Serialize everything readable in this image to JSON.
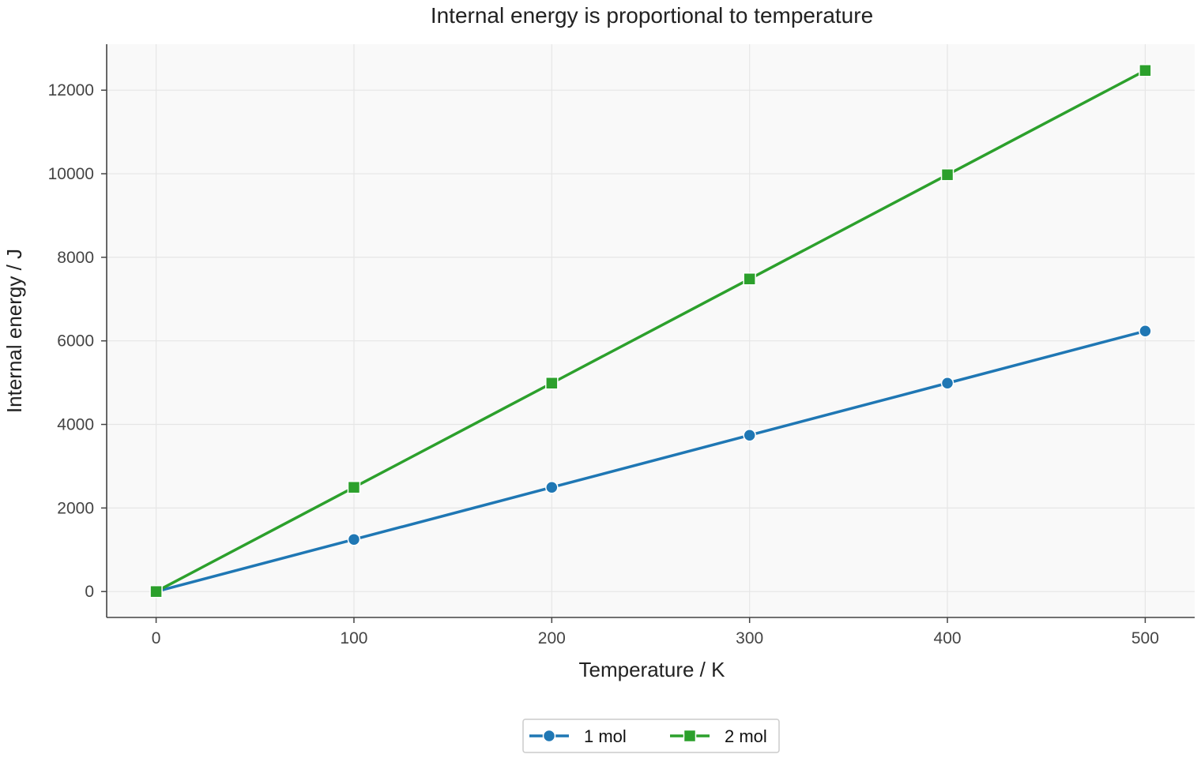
{
  "chart_data": {
    "type": "line",
    "title": "Internal energy is proportional to temperature",
    "xlabel": "Temperature / K",
    "ylabel": "Internal energy / J",
    "x": [
      0,
      100,
      200,
      300,
      400,
      500
    ],
    "xlim": [
      -25,
      525
    ],
    "ylim": [
      -620,
      13100
    ],
    "xticks": [
      0,
      100,
      200,
      300,
      400,
      500
    ],
    "yticks": [
      0,
      2000,
      4000,
      6000,
      8000,
      10000,
      12000
    ],
    "grid": true,
    "legend_position": "bottom-center",
    "series": [
      {
        "name": "1 mol",
        "color": "#1f77b4",
        "marker": "circle",
        "values": [
          0,
          1247,
          2494,
          3741,
          4988,
          6235
        ]
      },
      {
        "name": "2 mol",
        "color": "#2ca02c",
        "marker": "square",
        "values": [
          0,
          2494,
          4988,
          7482,
          9976,
          12471
        ]
      }
    ]
  }
}
